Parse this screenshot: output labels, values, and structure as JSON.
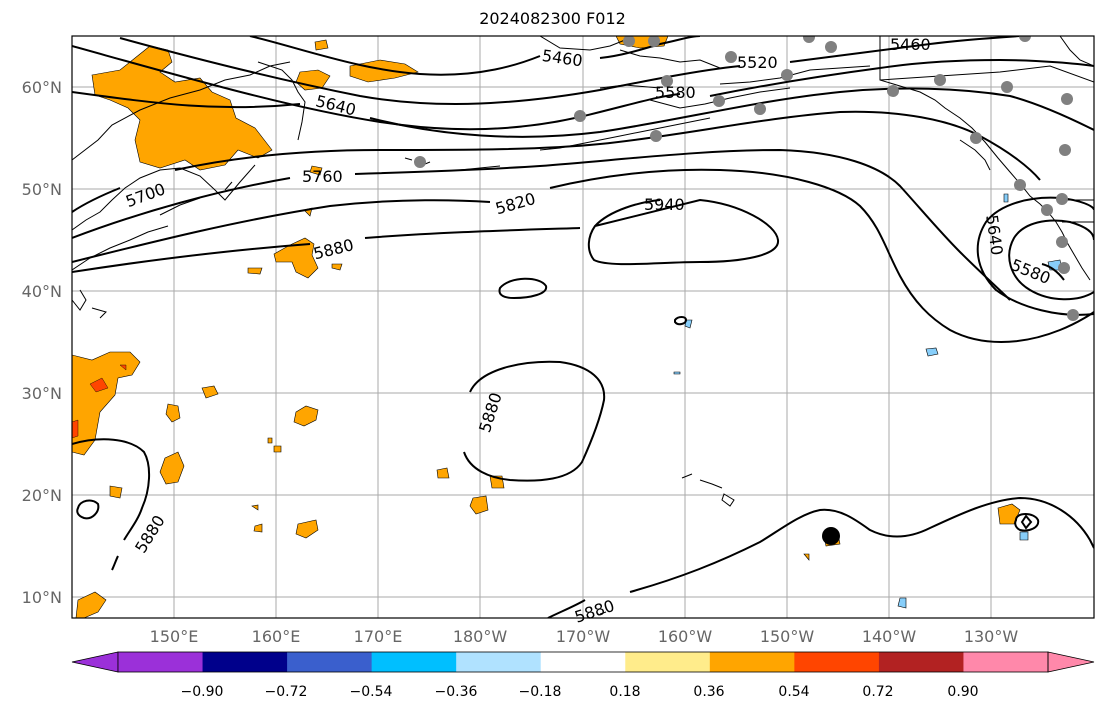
{
  "title": "2024082300 F012",
  "axes": {
    "lat_labels": [
      "60°N",
      "50°N",
      "40°N",
      "30°N",
      "20°N",
      "10°N"
    ],
    "lon_labels": [
      "150°E",
      "160°E",
      "170°E",
      "180°W",
      "170°W",
      "160°W",
      "150°W",
      "140°W",
      "130°W"
    ]
  },
  "contour_labels": [
    "5460",
    "5520",
    "5580",
    "5460",
    "5640",
    "5700",
    "5760",
    "5820",
    "5940",
    "5880",
    "5640",
    "5580",
    "5880",
    "5880",
    "5880"
  ],
  "colorbar": {
    "tick_labels": [
      "−0.90",
      "−0.72",
      "−0.54",
      "−0.36",
      "−0.18",
      "0.18",
      "0.36",
      "0.54",
      "0.72",
      "0.90"
    ],
    "colors": [
      "#9b30d9",
      "#00008b",
      "#3a5fcd",
      "#00bfff",
      "#b0e2ff",
      "#ffffff",
      "#ffec8b",
      "#ffa500",
      "#ff4500",
      "#b22222",
      "#ff88aa",
      "#ff88aa"
    ]
  },
  "colors": {
    "positive_fill": "#ffa500",
    "strong_positive_fill": "#ff4500",
    "negative_fill": "#87cefa",
    "station_dot": "#808080",
    "grid": "#aaaaaa"
  }
}
